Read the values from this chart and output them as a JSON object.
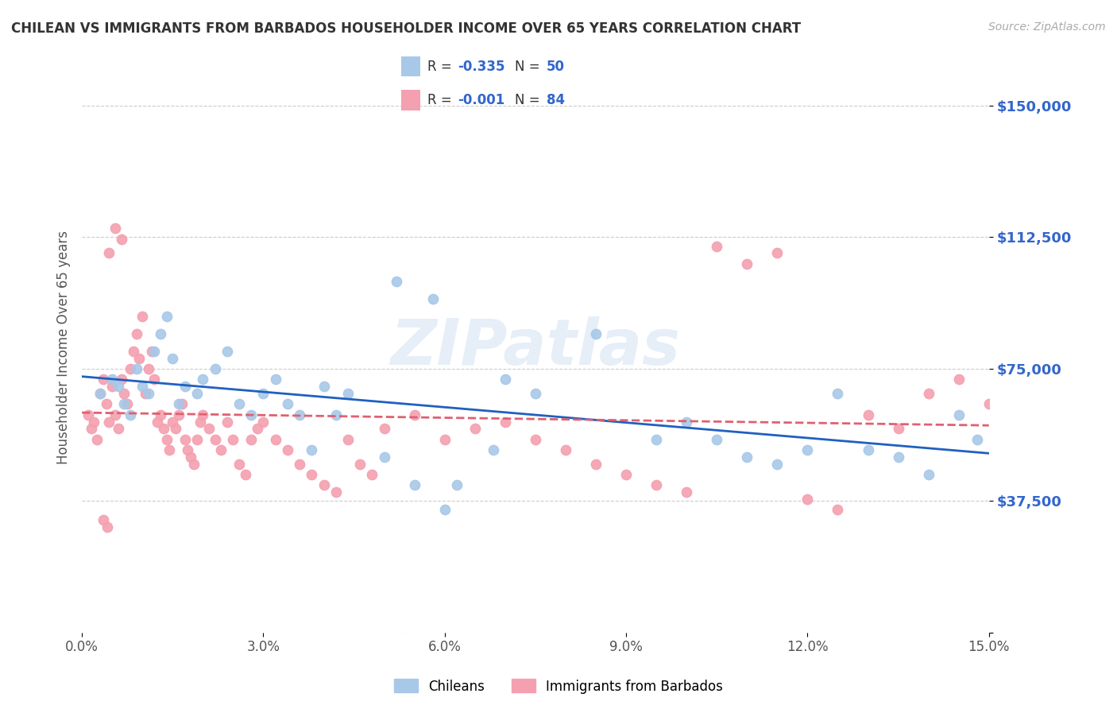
{
  "title": "CHILEAN VS IMMIGRANTS FROM BARBADOS HOUSEHOLDER INCOME OVER 65 YEARS CORRELATION CHART",
  "source": "Source: ZipAtlas.com",
  "ylabel": "Householder Income Over 65 years",
  "xlabel_ticks": [
    "0.0%",
    "3.0%",
    "6.0%",
    "9.0%",
    "12.0%",
    "15.0%"
  ],
  "xlabel_vals": [
    0.0,
    3.0,
    6.0,
    9.0,
    12.0,
    15.0
  ],
  "ytick_vals": [
    0,
    37500,
    75000,
    112500,
    150000
  ],
  "ytick_labels": [
    "",
    "$37,500",
    "$75,000",
    "$112,500",
    "$150,000"
  ],
  "xmin": 0.0,
  "xmax": 15.0,
  "ymin": 0,
  "ymax": 162500,
  "chilean_color": "#a8c8e8",
  "barbados_color": "#f4a0b0",
  "chilean_line_color": "#2060c0",
  "barbados_line_color": "#e06070",
  "R_chilean": -0.335,
  "N_chilean": 50,
  "R_barbados": -0.001,
  "N_barbados": 84,
  "chilean_x": [
    0.3,
    0.5,
    0.6,
    0.7,
    0.8,
    0.9,
    1.0,
    1.1,
    1.2,
    1.3,
    1.4,
    1.5,
    1.6,
    1.7,
    1.9,
    2.0,
    2.2,
    2.4,
    2.6,
    2.8,
    3.0,
    3.2,
    3.4,
    3.6,
    4.0,
    4.4,
    5.0,
    5.5,
    6.0,
    6.2,
    7.0,
    7.5,
    8.5,
    9.5,
    10.0,
    10.5,
    11.0,
    11.5,
    12.0,
    12.5,
    13.0,
    13.5,
    14.0,
    14.5,
    14.8,
    5.2,
    5.8,
    6.8,
    4.2,
    3.8
  ],
  "chilean_y": [
    68000,
    72000,
    70000,
    65000,
    62000,
    75000,
    70000,
    68000,
    80000,
    85000,
    90000,
    78000,
    65000,
    70000,
    68000,
    72000,
    75000,
    80000,
    65000,
    62000,
    68000,
    72000,
    65000,
    62000,
    70000,
    68000,
    50000,
    42000,
    35000,
    42000,
    72000,
    68000,
    85000,
    55000,
    60000,
    55000,
    50000,
    48000,
    52000,
    68000,
    52000,
    50000,
    45000,
    62000,
    55000,
    100000,
    95000,
    52000,
    62000,
    52000
  ],
  "barbados_x": [
    0.1,
    0.15,
    0.2,
    0.25,
    0.3,
    0.35,
    0.4,
    0.45,
    0.5,
    0.55,
    0.6,
    0.65,
    0.7,
    0.75,
    0.8,
    0.85,
    0.9,
    0.95,
    1.0,
    1.05,
    1.1,
    1.15,
    1.2,
    1.25,
    1.3,
    1.35,
    1.4,
    1.45,
    1.5,
    1.55,
    1.6,
    1.65,
    1.7,
    1.75,
    1.8,
    1.85,
    1.9,
    1.95,
    2.0,
    2.1,
    2.2,
    2.3,
    2.4,
    2.5,
    2.6,
    2.7,
    2.8,
    2.9,
    3.0,
    3.2,
    3.4,
    3.6,
    3.8,
    4.0,
    4.2,
    4.4,
    4.6,
    4.8,
    5.0,
    5.5,
    6.0,
    6.5,
    7.0,
    7.5,
    8.0,
    8.5,
    9.0,
    9.5,
    10.0,
    10.5,
    11.0,
    11.5,
    12.0,
    12.5,
    13.0,
    13.5,
    14.0,
    14.5,
    15.0,
    0.55,
    0.65,
    0.45,
    0.35,
    0.42
  ],
  "barbados_y": [
    62000,
    58000,
    60000,
    55000,
    68000,
    72000,
    65000,
    60000,
    70000,
    62000,
    58000,
    72000,
    68000,
    65000,
    75000,
    80000,
    85000,
    78000,
    90000,
    68000,
    75000,
    80000,
    72000,
    60000,
    62000,
    58000,
    55000,
    52000,
    60000,
    58000,
    62000,
    65000,
    55000,
    52000,
    50000,
    48000,
    55000,
    60000,
    62000,
    58000,
    55000,
    52000,
    60000,
    55000,
    48000,
    45000,
    55000,
    58000,
    60000,
    55000,
    52000,
    48000,
    45000,
    42000,
    40000,
    55000,
    48000,
    45000,
    58000,
    62000,
    55000,
    58000,
    60000,
    55000,
    52000,
    48000,
    45000,
    42000,
    40000,
    110000,
    105000,
    108000,
    38000,
    35000,
    62000,
    58000,
    68000,
    72000,
    65000,
    115000,
    112000,
    108000,
    32000,
    30000
  ]
}
